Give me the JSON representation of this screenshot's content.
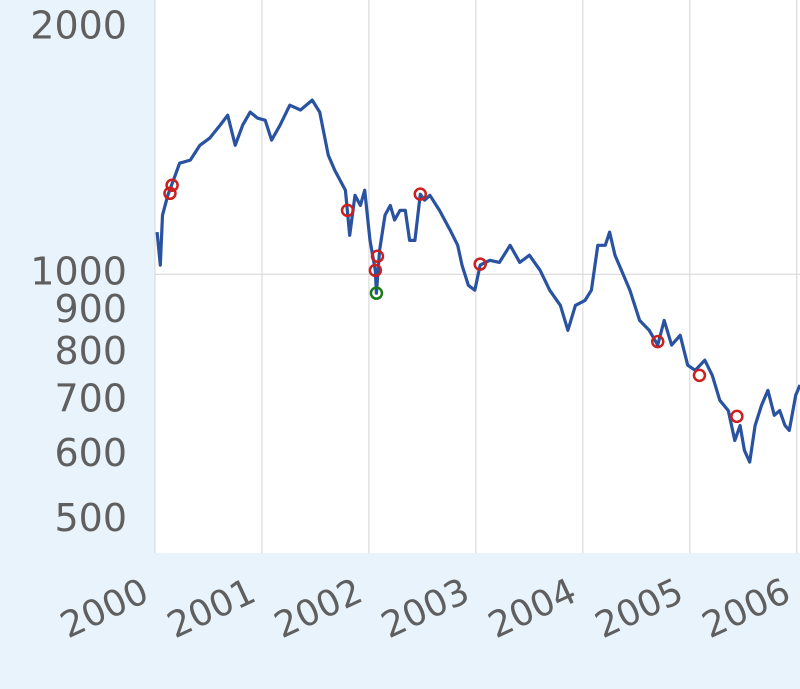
{
  "chart_data": {
    "type": "line",
    "x": [
      2000.02,
      2000.05,
      2000.07,
      2000.12,
      2000.19,
      2000.23,
      2000.33,
      2000.42,
      2000.51,
      2000.61,
      2000.68,
      2000.75,
      2000.82,
      2000.89,
      2000.96,
      2001.03,
      2001.09,
      2001.17,
      2001.26,
      2001.36,
      2001.47,
      2001.54,
      2001.62,
      2001.68,
      2001.78,
      2001.82,
      2001.87,
      2001.92,
      2001.96,
      2002.01,
      2002.06,
      2002.07,
      2002.1,
      2002.15,
      2002.2,
      2002.24,
      2002.29,
      2002.34,
      2002.38,
      2002.43,
      2002.48,
      2002.52,
      2002.57,
      2002.66,
      2002.76,
      2002.83,
      2002.87,
      2002.93,
      2002.99,
      2003.04,
      2003.13,
      2003.22,
      2003.32,
      2003.41,
      2003.5,
      2003.6,
      2003.69,
      2003.79,
      2003.86,
      2003.93,
      2004.02,
      2004.08,
      2004.14,
      2004.21,
      2004.25,
      2004.3,
      2004.36,
      2004.44,
      2004.53,
      2004.62,
      2004.7,
      2004.76,
      2004.83,
      2004.91,
      2004.98,
      2005.05,
      2005.14,
      2005.21,
      2005.28,
      2005.36,
      2005.42,
      2005.47,
      2005.51,
      2005.56,
      2005.61,
      2005.67,
      2005.73,
      2005.79,
      2005.84,
      2005.89,
      2005.93,
      2005.99,
      2006.03
    ],
    "series": [
      {
        "color": "#2952a0",
        "values": [
          1126,
          1026,
          1181,
          1249,
          1322,
          1367,
          1379,
          1438,
          1467,
          1522,
          1565,
          1438,
          1522,
          1579,
          1552,
          1543,
          1459,
          1522,
          1610,
          1588,
          1633,
          1579,
          1398,
          1341,
          1267,
          1116,
          1249,
          1214,
          1267,
          1100,
          1011,
          948,
          1070,
          1181,
          1214,
          1165,
          1197,
          1197,
          1100,
          1100,
          1253,
          1232,
          1249,
          1197,
          1132,
          1085,
          1026,
          969,
          956,
          1026,
          1040,
          1034,
          1085,
          1034,
          1055,
          1011,
          956,
          916,
          854,
          916,
          929,
          956,
          1085,
          1085,
          1126,
          1055,
          1011,
          956,
          878,
          854,
          819,
          878,
          819,
          842,
          774,
          763,
          785,
          752,
          701,
          681,
          626,
          653,
          609,
          589,
          653,
          691,
          721,
          672,
          681,
          653,
          644,
          711,
          732
        ]
      }
    ],
    "markers": [
      {
        "color": "#cc1f1f",
        "x": [
          2000.14,
          2000.16,
          2001.8,
          2002.06,
          2002.08,
          2002.48,
          2003.04,
          2004.7,
          2005.09,
          2005.44
        ],
        "values": [
          1256,
          1285,
          1197,
          1011,
          1052,
          1253,
          1029,
          827,
          752,
          670
        ]
      },
      {
        "color": "#1a7a1a",
        "x": [
          2002.07
        ],
        "values": [
          948
        ]
      }
    ],
    "log_y": true,
    "xlim": [
      2000,
      2006.03
    ],
    "xticks": [
      2000,
      2001,
      2002,
      2003,
      2004,
      2005,
      2006
    ],
    "ylim": [
      456,
      2165
    ],
    "yticks": [
      500,
      600,
      700,
      800,
      900,
      1000,
      2000
    ],
    "ygrid": [
      1000
    ],
    "xgrid": true
  }
}
